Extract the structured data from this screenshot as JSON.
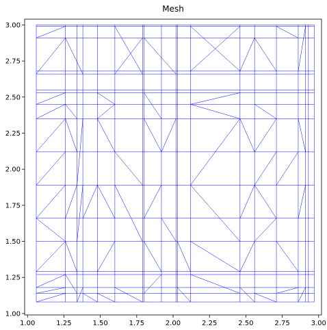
{
  "chart_data": {
    "type": "mesh",
    "title": "Mesh",
    "xlim": [
      0.98,
      3.02
    ],
    "ylim": [
      0.99,
      3.04
    ],
    "xticks": [
      "1.00",
      "1.25",
      "1.50",
      "1.75",
      "2.00",
      "2.25",
      "2.50",
      "2.75",
      "3.00"
    ],
    "yticks": [
      "1.00",
      "1.25",
      "1.50",
      "1.75",
      "2.00",
      "2.25",
      "2.50",
      "2.75",
      "3.00"
    ],
    "mesh_color": "#0000ff",
    "mesh_bounds": {
      "x": [
        1.06,
        2.97
      ],
      "y": [
        1.08,
        3.0
      ]
    },
    "grid_x": [
      1.06,
      1.26,
      1.34,
      1.38,
      1.48,
      1.6,
      1.79,
      1.8,
      1.92,
      2.02,
      2.03,
      2.12,
      2.46,
      2.56,
      2.71,
      2.86,
      2.91,
      2.93,
      2.97
    ],
    "grid_y": [
      1.08,
      1.14,
      1.18,
      1.27,
      1.29,
      1.5,
      1.66,
      1.89,
      2.12,
      2.35,
      2.45,
      2.53,
      2.55,
      2.66,
      2.68,
      2.91,
      2.99,
      3.0
    ],
    "mesh_edges": [
      [
        1.06,
        2.91,
        1.26,
        2.99
      ],
      [
        1.06,
        2.66,
        1.26,
        2.91
      ],
      [
        1.26,
        2.91,
        1.38,
        2.66
      ],
      [
        1.6,
        2.99,
        1.79,
        2.66
      ],
      [
        1.6,
        2.66,
        1.79,
        2.91
      ],
      [
        1.8,
        2.91,
        2.02,
        2.66
      ],
      [
        2.12,
        2.68,
        2.46,
        2.99
      ],
      [
        2.12,
        2.99,
        2.46,
        2.68
      ],
      [
        2.46,
        2.68,
        2.56,
        2.91
      ],
      [
        2.56,
        2.91,
        2.71,
        2.68
      ],
      [
        2.71,
        2.99,
        2.86,
        2.91
      ],
      [
        2.86,
        2.68,
        2.91,
        2.99
      ],
      [
        1.06,
        2.45,
        1.26,
        2.53
      ],
      [
        1.06,
        2.35,
        1.26,
        2.45
      ],
      [
        1.26,
        2.45,
        1.34,
        2.35
      ],
      [
        1.48,
        2.53,
        1.6,
        2.45
      ],
      [
        1.48,
        2.35,
        1.6,
        2.45
      ],
      [
        1.8,
        2.53,
        1.92,
        2.35
      ],
      [
        2.12,
        2.45,
        2.46,
        2.35
      ],
      [
        2.12,
        2.45,
        2.46,
        2.53
      ],
      [
        2.56,
        2.45,
        2.71,
        2.35
      ],
      [
        1.06,
        2.12,
        1.26,
        2.35
      ],
      [
        1.06,
        1.89,
        1.26,
        2.12
      ],
      [
        1.26,
        2.35,
        1.34,
        2.12
      ],
      [
        1.34,
        1.89,
        1.38,
        2.35
      ],
      [
        1.48,
        2.35,
        1.6,
        2.12
      ],
      [
        1.6,
        2.12,
        1.79,
        1.89
      ],
      [
        1.8,
        2.35,
        1.92,
        2.12
      ],
      [
        1.92,
        2.12,
        2.02,
        2.35
      ],
      [
        2.12,
        1.89,
        2.46,
        2.35
      ],
      [
        2.12,
        1.89,
        2.46,
        1.5
      ],
      [
        2.46,
        2.35,
        2.56,
        2.12
      ],
      [
        2.56,
        2.12,
        2.71,
        2.35
      ],
      [
        2.56,
        1.89,
        2.71,
        2.12
      ],
      [
        2.71,
        1.89,
        2.86,
        2.12
      ],
      [
        2.86,
        2.35,
        2.91,
        2.12
      ],
      [
        1.06,
        1.66,
        1.26,
        1.89
      ],
      [
        1.06,
        1.66,
        1.26,
        1.5
      ],
      [
        1.06,
        1.29,
        1.26,
        1.5
      ],
      [
        1.26,
        1.66,
        1.34,
        1.89
      ],
      [
        1.34,
        1.5,
        1.38,
        1.89
      ],
      [
        1.38,
        1.66,
        1.48,
        1.89
      ],
      [
        1.48,
        1.89,
        1.6,
        1.66
      ],
      [
        1.6,
        1.89,
        1.79,
        1.5
      ],
      [
        1.8,
        1.66,
        1.92,
        1.89
      ],
      [
        1.92,
        1.66,
        2.02,
        1.5
      ],
      [
        2.46,
        1.66,
        2.56,
        1.89
      ],
      [
        2.56,
        1.89,
        2.71,
        1.66
      ],
      [
        2.56,
        1.5,
        2.71,
        1.66
      ],
      [
        2.71,
        1.5,
        2.86,
        1.29
      ],
      [
        2.86,
        1.66,
        2.91,
        1.89
      ],
      [
        1.26,
        1.5,
        1.34,
        1.29
      ],
      [
        1.48,
        1.29,
        1.6,
        1.5
      ],
      [
        1.8,
        1.5,
        1.92,
        1.29
      ],
      [
        2.03,
        1.5,
        2.12,
        1.29
      ],
      [
        2.12,
        1.5,
        2.46,
        1.29
      ],
      [
        2.46,
        1.29,
        2.56,
        1.5
      ],
      [
        1.06,
        1.18,
        1.26,
        1.27
      ],
      [
        1.06,
        1.14,
        1.26,
        1.18
      ],
      [
        1.26,
        1.27,
        1.34,
        1.14
      ],
      [
        1.34,
        1.08,
        1.38,
        1.18
      ],
      [
        1.48,
        1.14,
        1.6,
        1.08
      ],
      [
        1.6,
        1.18,
        1.79,
        1.08
      ],
      [
        1.8,
        1.14,
        1.92,
        1.27
      ],
      [
        2.12,
        1.27,
        2.46,
        1.14
      ],
      [
        2.46,
        1.18,
        2.56,
        1.08
      ],
      [
        2.56,
        1.14,
        2.71,
        1.08
      ],
      [
        2.71,
        1.14,
        2.86,
        1.18
      ],
      [
        2.86,
        1.08,
        2.91,
        1.18
      ],
      [
        1.06,
        1.08,
        1.26,
        1.14
      ],
      [
        1.38,
        1.14,
        1.48,
        1.08
      ],
      [
        2.03,
        1.18,
        2.12,
        1.08
      ]
    ]
  }
}
